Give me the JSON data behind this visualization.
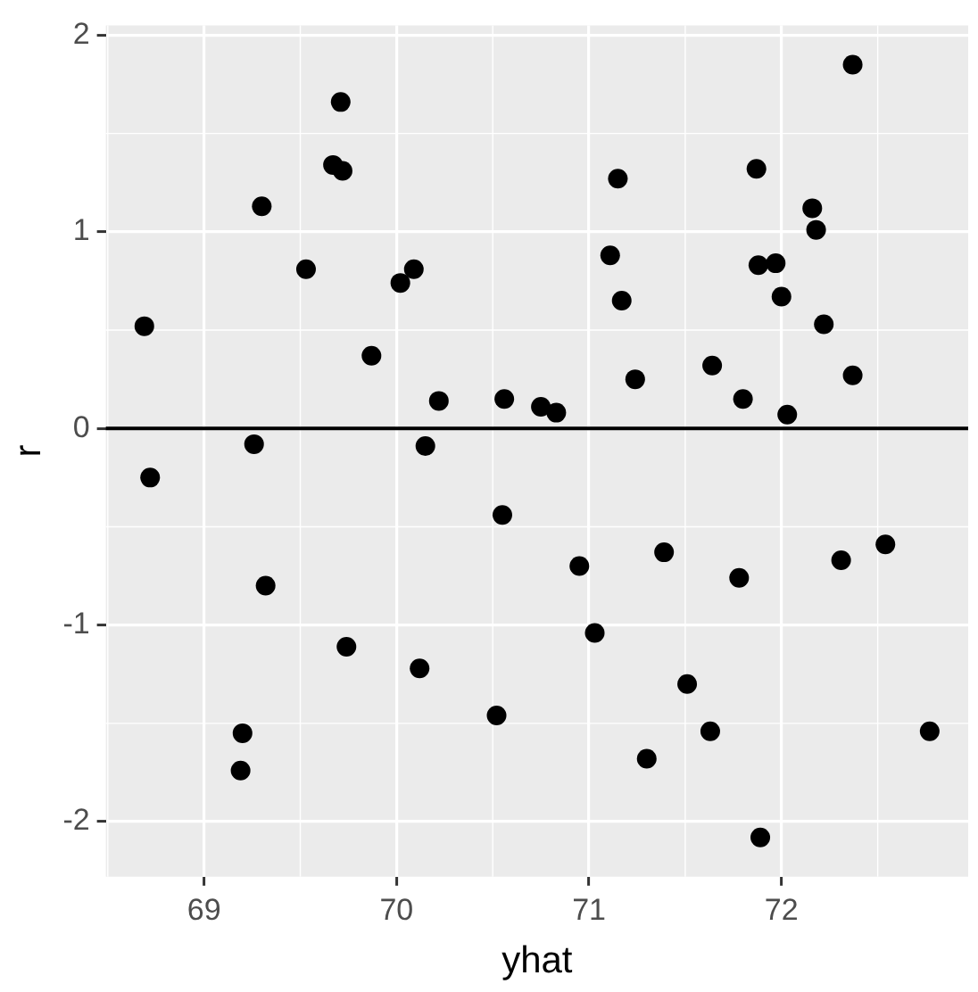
{
  "chart_data": {
    "type": "scatter",
    "xlabel": "yhat",
    "ylabel": "r",
    "x": [
      68.69,
      69.3,
      69.71,
      69.67,
      69.72,
      69.53,
      70.09,
      70.02,
      69.87,
      70.22,
      70.56,
      70.75,
      70.83,
      69.26,
      70.15,
      72.37,
      71.15,
      71.87,
      72.16,
      72.18,
      71.11,
      71.17,
      71.88,
      71.97,
      72.0,
      72.22,
      71.24,
      71.64,
      71.8,
      72.03,
      72.37,
      68.72,
      69.32,
      70.55,
      69.74,
      70.12,
      69.2,
      69.19,
      70.52,
      70.95,
      71.03,
      71.39,
      71.78,
      72.31,
      72.54,
      71.51,
      71.63,
      71.3,
      71.89,
      72.77
    ],
    "values": [
      0.52,
      1.13,
      1.66,
      1.34,
      1.31,
      0.81,
      0.81,
      0.74,
      0.37,
      0.14,
      0.15,
      0.11,
      0.08,
      -0.08,
      -0.09,
      1.85,
      1.27,
      1.32,
      1.12,
      1.01,
      0.88,
      0.65,
      0.83,
      0.84,
      0.67,
      0.53,
      0.25,
      0.32,
      0.15,
      0.07,
      0.27,
      -0.25,
      -0.8,
      -0.44,
      -1.11,
      -1.22,
      -1.55,
      -1.74,
      -1.46,
      -0.7,
      -1.04,
      -0.63,
      -0.76,
      -0.67,
      -0.59,
      -1.3,
      -1.54,
      -1.68,
      -2.08,
      -1.54
    ],
    "color": "#000000",
    "marker": "circle",
    "xlim": [
      68.49,
      72.97
    ],
    "xticks": [
      69,
      70,
      71,
      72
    ],
    "ylim": [
      -2.28,
      2.05
    ],
    "yticks": [
      -2,
      -1,
      0,
      1,
      2
    ],
    "grid": true,
    "legend": false,
    "ref_lines": [
      {
        "axis": "y",
        "value": 0,
        "color": "#000000",
        "line_style": "solid"
      }
    ]
  }
}
